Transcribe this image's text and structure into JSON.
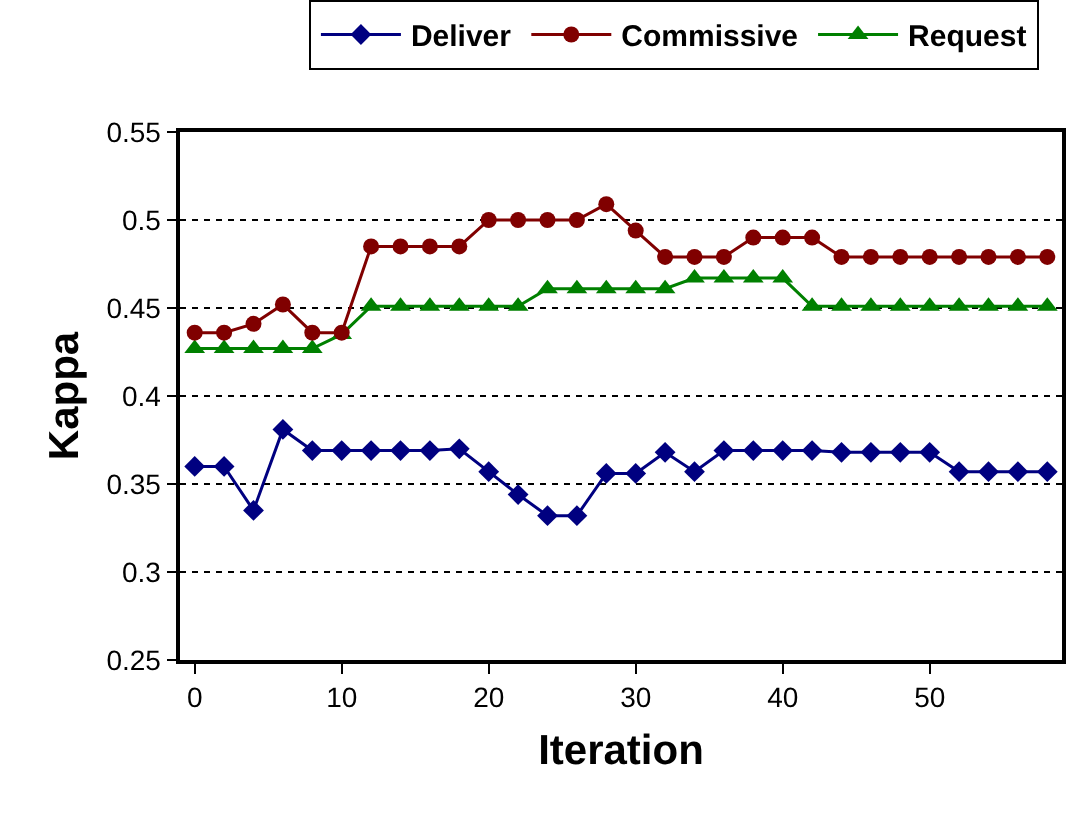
{
  "chart_data": {
    "type": "line",
    "xlabel": "Iteration",
    "ylabel": "Kappa",
    "x": [
      0,
      2,
      4,
      6,
      8,
      10,
      12,
      14,
      16,
      18,
      20,
      22,
      24,
      26,
      28,
      30,
      32,
      34,
      36,
      38,
      40,
      42,
      44,
      46,
      48,
      50,
      52,
      54,
      56,
      58
    ],
    "series": [
      {
        "name": "Deliver",
        "color": "#000080",
        "marker": "diamond",
        "values": [
          0.36,
          0.36,
          0.335,
          0.381,
          0.369,
          0.369,
          0.369,
          0.369,
          0.369,
          0.37,
          0.357,
          0.344,
          0.332,
          0.332,
          0.356,
          0.356,
          0.368,
          0.357,
          0.369,
          0.369,
          0.369,
          0.369,
          0.368,
          0.368,
          0.368,
          0.368,
          0.357,
          0.357,
          0.357,
          0.357
        ]
      },
      {
        "name": "Commissive",
        "color": "#800000",
        "marker": "circle",
        "values": [
          0.436,
          0.436,
          0.441,
          0.452,
          0.436,
          0.436,
          0.485,
          0.485,
          0.485,
          0.485,
          0.5,
          0.5,
          0.5,
          0.5,
          0.509,
          0.494,
          0.479,
          0.479,
          0.479,
          0.49,
          0.49,
          0.49,
          0.479,
          0.479,
          0.479,
          0.479,
          0.479,
          0.479,
          0.479,
          0.479
        ]
      },
      {
        "name": "Request",
        "color": "#008000",
        "marker": "triangle",
        "values": [
          0.427,
          0.427,
          0.427,
          0.427,
          0.427,
          0.435,
          0.451,
          0.451,
          0.451,
          0.451,
          0.451,
          0.451,
          0.461,
          0.461,
          0.461,
          0.461,
          0.461,
          0.467,
          0.467,
          0.467,
          0.467,
          0.451,
          0.451,
          0.451,
          0.451,
          0.451,
          0.451,
          0.451,
          0.451,
          0.451
        ]
      }
    ],
    "xlim": [
      -1,
      59
    ],
    "xticks": [
      0,
      10,
      20,
      30,
      40,
      50
    ],
    "ylim": [
      0.25,
      0.55
    ],
    "yticks": [
      {
        "value": 0.25,
        "label": "0.25"
      },
      {
        "value": 0.3,
        "label": "0.3"
      },
      {
        "value": 0.35,
        "label": "0.35"
      },
      {
        "value": 0.4,
        "label": "0.4"
      },
      {
        "value": 0.45,
        "label": "0.45"
      },
      {
        "value": 0.5,
        "label": "0.5"
      },
      {
        "value": 0.55,
        "label": "0.55"
      }
    ],
    "grid": "y",
    "legend": "top",
    "line_style": "solid"
  }
}
